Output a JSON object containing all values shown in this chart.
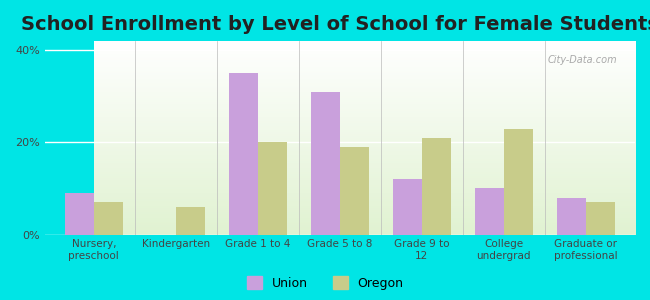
{
  "title": "School Enrollment by Level of School for Female Students",
  "categories": [
    "Nursery,\npreschool",
    "Kindergarten",
    "Grade 1 to 4",
    "Grade 5 to 8",
    "Grade 9 to\n12",
    "College\nundergrad",
    "Graduate or\nprofessional"
  ],
  "union_values": [
    9,
    0,
    35,
    31,
    12,
    10,
    8
  ],
  "oregon_values": [
    7,
    6,
    20,
    19,
    21,
    23,
    7
  ],
  "union_color": "#c9a0dc",
  "oregon_color": "#c8cc8a",
  "background_outer": "#00e5e5",
  "ylim": [
    0,
    42
  ],
  "yticks": [
    0,
    20,
    40
  ],
  "ytick_labels": [
    "0%",
    "20%",
    "40%"
  ],
  "legend_union": "Union",
  "legend_oregon": "Oregon",
  "bar_width": 0.35,
  "title_fontsize": 14,
  "watermark": "City-Data.com"
}
